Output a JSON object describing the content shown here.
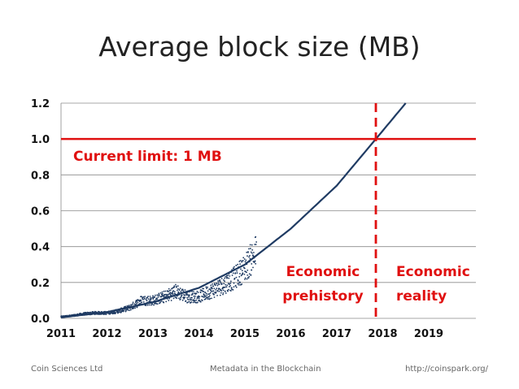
{
  "chart_data": {
    "type": "scatter",
    "title": "Average block size (MB)",
    "x_ticks": [
      "2011",
      "2012",
      "2013",
      "2014",
      "2015",
      "2016",
      "2017",
      "2018",
      "2019"
    ],
    "y_ticks": [
      "0.0",
      "0.2",
      "0.4",
      "0.6",
      "0.8",
      "1.0",
      "1.2"
    ],
    "xlim": [
      2011,
      2020
    ],
    "ylim": [
      0,
      1.2
    ],
    "grid": true,
    "series": [
      {
        "kind": "observed",
        "x": [
          2011.0,
          2011.25,
          2011.5,
          2011.75,
          2012.0,
          2012.25,
          2012.5,
          2012.75,
          2013.0,
          2013.25,
          2013.5,
          2013.75,
          2014.0,
          2014.25,
          2014.5,
          2014.75,
          2015.0,
          2015.25
        ],
        "y": [
          0.01,
          0.015,
          0.025,
          0.03,
          0.03,
          0.04,
          0.06,
          0.1,
          0.1,
          0.12,
          0.15,
          0.12,
          0.12,
          0.15,
          0.18,
          0.22,
          0.28,
          0.37
        ]
      },
      {
        "kind": "trend",
        "x": [
          2011.0,
          2012.0,
          2013.0,
          2014.0,
          2015.0,
          2016.0,
          2017.0,
          2017.85,
          2018.5
        ],
        "y": [
          0.005,
          0.035,
          0.09,
          0.17,
          0.3,
          0.5,
          0.74,
          1.0,
          1.2
        ]
      }
    ],
    "reference_lines": [
      {
        "orientation": "horizontal",
        "value": 1.0,
        "color": "#e01010",
        "style": "solid"
      },
      {
        "orientation": "vertical",
        "value": 2017.85,
        "color": "#e01010",
        "style": "dashed"
      }
    ],
    "annotations": [
      {
        "text": "Current limit: 1 MB",
        "color": "#e01010"
      },
      {
        "text": "Economic",
        "color": "#e01010"
      },
      {
        "text": "prehistory",
        "color": "#e01010"
      },
      {
        "text": "Economic",
        "color": "#e01010"
      },
      {
        "text": "reality",
        "color": "#e01010"
      }
    ],
    "colors": {
      "data": "#1f3b63",
      "limit": "#e01010"
    }
  },
  "footer": {
    "left": "Coin Sciences Ltd",
    "center": "Metadata in the Blockchain",
    "right": "http://coinspark.org/"
  }
}
